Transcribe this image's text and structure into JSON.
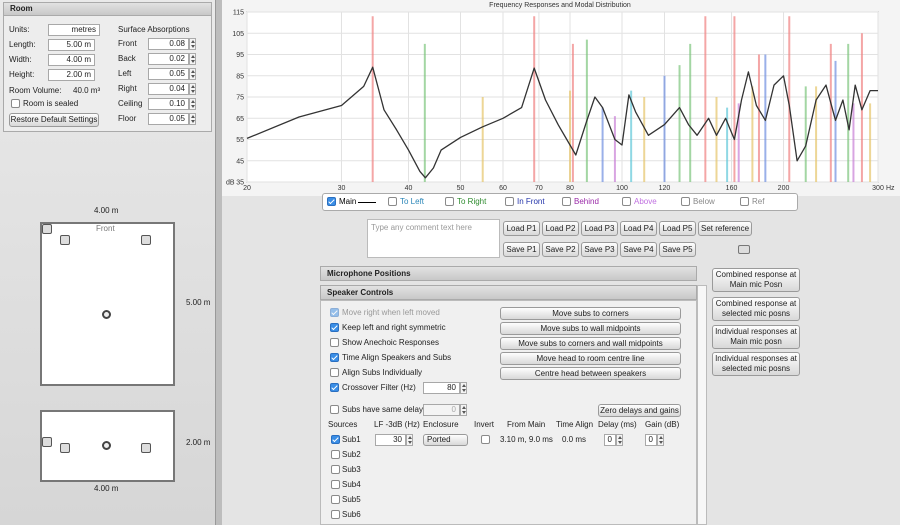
{
  "room_panel": {
    "title": "Room",
    "units_label": "Units:",
    "units_value": "metres",
    "fields": [
      {
        "label": "Length:",
        "value": "5.00 m"
      },
      {
        "label": "Width:",
        "value": "4.00 m"
      },
      {
        "label": "Height:",
        "value": "2.00 m"
      }
    ],
    "volume_label": "Room Volume:",
    "volume_value": "40.0 m³",
    "sealed_label": "Room is sealed",
    "restore_button": "Restore Default Settings",
    "absorptions_title": "Surface Absorptions",
    "absorptions": [
      {
        "label": "Front",
        "value": "0.08"
      },
      {
        "label": "Back",
        "value": "0.02"
      },
      {
        "label": "Left",
        "value": "0.05"
      },
      {
        "label": "Right",
        "value": "0.04"
      },
      {
        "label": "Ceiling",
        "value": "0.10"
      },
      {
        "label": "Floor",
        "value": "0.05"
      }
    ]
  },
  "plan_view": {
    "width_label": "4.00 m",
    "length_label": "5.00 m",
    "front_label": "Front"
  },
  "side_view": {
    "height_label": "2.00 m",
    "length_label": "4.00 m"
  },
  "chart": {
    "type": "line",
    "title": "Frequency Responses and Modal Distribution",
    "x_unit": "Hz",
    "y_unit": "dB",
    "x_scale": "log",
    "xlim": [
      20,
      300
    ],
    "ylim": [
      35,
      115
    ],
    "xticks": [
      20,
      30,
      40,
      50,
      60,
      70,
      80,
      100,
      120,
      160,
      200,
      300
    ],
    "yticks": [
      35,
      45,
      55,
      65,
      75,
      85,
      95,
      105,
      115
    ],
    "grid": true,
    "series": [
      {
        "color": "#333333",
        "x": [
          20,
          25,
          30,
          33,
          34.3,
          36,
          38,
          40,
          42,
          43,
          44.5,
          46,
          50,
          55,
          60,
          65,
          68.6,
          72,
          76,
          80,
          82,
          86,
          89,
          92,
          97,
          100,
          103,
          106,
          112,
          120,
          128,
          133,
          138,
          145,
          150,
          156,
          162,
          167,
          172,
          178,
          185,
          192,
          200,
          205,
          212,
          220,
          230,
          240,
          250,
          258,
          265,
          272,
          280,
          290,
          300
        ],
        "values": [
          55.5,
          65.6,
          71,
          80,
          89,
          69,
          59.5,
          50,
          40,
          37,
          41.6,
          50,
          56,
          61,
          65,
          70,
          88.6,
          73.6,
          62,
          52.4,
          47.7,
          64,
          75,
          70,
          55,
          52.4,
          76,
          68,
          57,
          62,
          70,
          62,
          57,
          65,
          57,
          65,
          55,
          73.6,
          86.8,
          71,
          64,
          80.6,
          85,
          71,
          45,
          52,
          73.6,
          80.6,
          64,
          73.6,
          59.5,
          80.6,
          69,
          78,
          78
        ]
      }
    ],
    "modes": [
      {
        "x": 34.3,
        "value": 113,
        "color": "#f08080"
      },
      {
        "x": 42.9,
        "value": 100,
        "color": "#7cc47c"
      },
      {
        "x": 55,
        "value": 75,
        "color": "#e6c46a"
      },
      {
        "x": 68.6,
        "value": 113,
        "color": "#f08080"
      },
      {
        "x": 80,
        "value": 78,
        "color": "#e6c46a"
      },
      {
        "x": 81,
        "value": 100,
        "color": "#f08080"
      },
      {
        "x": 86,
        "value": 102,
        "color": "#7cc47c"
      },
      {
        "x": 92,
        "value": 70,
        "color": "#6f8fe0"
      },
      {
        "x": 97,
        "value": 66,
        "color": "#c77fd6"
      },
      {
        "x": 104,
        "value": 78,
        "color": "#5fc8d8"
      },
      {
        "x": 110,
        "value": 75,
        "color": "#e6c46a"
      },
      {
        "x": 120,
        "value": 85,
        "color": "#6f8fe0"
      },
      {
        "x": 128,
        "value": 90,
        "color": "#7cc47c"
      },
      {
        "x": 134,
        "value": 100,
        "color": "#7cc47c"
      },
      {
        "x": 143,
        "value": 113,
        "color": "#f08080"
      },
      {
        "x": 150,
        "value": 75,
        "color": "#e6c46a"
      },
      {
        "x": 157,
        "value": 70,
        "color": "#5fc8d8"
      },
      {
        "x": 162,
        "value": 113,
        "color": "#f08080"
      },
      {
        "x": 165,
        "value": 72,
        "color": "#c77fd6"
      },
      {
        "x": 175,
        "value": 80,
        "color": "#e6c46a"
      },
      {
        "x": 180,
        "value": 95,
        "color": "#f08080"
      },
      {
        "x": 185,
        "value": 95,
        "color": "#6f8fe0"
      },
      {
        "x": 205,
        "value": 113,
        "color": "#f08080"
      },
      {
        "x": 220,
        "value": 80,
        "color": "#7cc47c"
      },
      {
        "x": 230,
        "value": 80,
        "color": "#e6c46a"
      },
      {
        "x": 245,
        "value": 100,
        "color": "#f08080"
      },
      {
        "x": 250,
        "value": 92,
        "color": "#6f8fe0"
      },
      {
        "x": 264,
        "value": 100,
        "color": "#7cc47c"
      },
      {
        "x": 270,
        "value": 72,
        "color": "#c77fd6"
      },
      {
        "x": 280,
        "value": 105,
        "color": "#f08080"
      },
      {
        "x": 290,
        "value": 72,
        "color": "#e6c46a"
      }
    ]
  },
  "legend": [
    {
      "label": "Main",
      "checked": true,
      "color": "#000000"
    },
    {
      "label": "To Left",
      "checked": false,
      "color": "#2a86b8"
    },
    {
      "label": "To Right",
      "checked": false,
      "color": "#2e8b2e"
    },
    {
      "label": "In Front",
      "checked": false,
      "color": "#2233aa"
    },
    {
      "label": "Behind",
      "checked": false,
      "color": "#9a2aa8"
    },
    {
      "label": "Above",
      "checked": false,
      "color": "#c070e0"
    },
    {
      "label": "Below",
      "checked": false,
      "color": "#888888"
    },
    {
      "label": "Ref",
      "checked": false,
      "color": "#888888"
    }
  ],
  "comment_placeholder": "Type any comment text here",
  "load_buttons": [
    "Load P1",
    "Load P2",
    "Load P3",
    "Load P4",
    "Load P5"
  ],
  "set_reference": "Set reference",
  "save_buttons": [
    "Save P1",
    "Save P2",
    "Save P3",
    "Save P4",
    "Save P5"
  ],
  "mic_panel_title": "Microphone Positions",
  "speaker_panel": {
    "title": "Speaker Controls",
    "options": [
      {
        "label": "Move right when left moved",
        "checked": true,
        "disabled": true
      },
      {
        "label": "Keep left and right symmetric",
        "checked": true,
        "disabled": false
      },
      {
        "label": "Show Anechoic Responses",
        "checked": false,
        "disabled": false
      },
      {
        "label": "Time Align Speakers and Subs",
        "checked": true,
        "disabled": false
      },
      {
        "label": "Align Subs Individually",
        "checked": false,
        "disabled": false
      },
      {
        "label": "Crossover Filter (Hz)",
        "checked": true,
        "disabled": false
      }
    ],
    "crossover_value": 80,
    "actions": [
      "Move subs to corners",
      "Move subs to wall midpoints",
      "Move subs to corners and wall midpoints",
      "Move head to room centre line",
      "Centre head between speakers"
    ],
    "same_delay_label": "Subs have same delay",
    "same_delay_value": 0,
    "zero_button": "Zero delays and gains",
    "headers": [
      "Sources",
      "LF -3dB (Hz)",
      "Enclosure",
      "Invert",
      "From Main",
      "Time Align",
      "Delay (ms)",
      "Gain (dB)"
    ],
    "subs": [
      {
        "name": "Sub1",
        "checked": true,
        "lf": 30,
        "enclosure": "Ported",
        "from_main": "3.10 m, 9.0 ms",
        "time_align": "0.0 ms",
        "delay": 0,
        "gain": 0
      },
      {
        "name": "Sub2",
        "checked": false
      },
      {
        "name": "Sub3",
        "checked": false
      },
      {
        "name": "Sub4",
        "checked": false
      },
      {
        "name": "Sub5",
        "checked": false
      },
      {
        "name": "Sub6",
        "checked": false
      }
    ]
  },
  "right_buttons": [
    "Combined response at Main mic Posn",
    "Combined response at selected mic posns",
    "Individual responses at Main mic posn",
    "Individual responses at selected mic posns"
  ]
}
